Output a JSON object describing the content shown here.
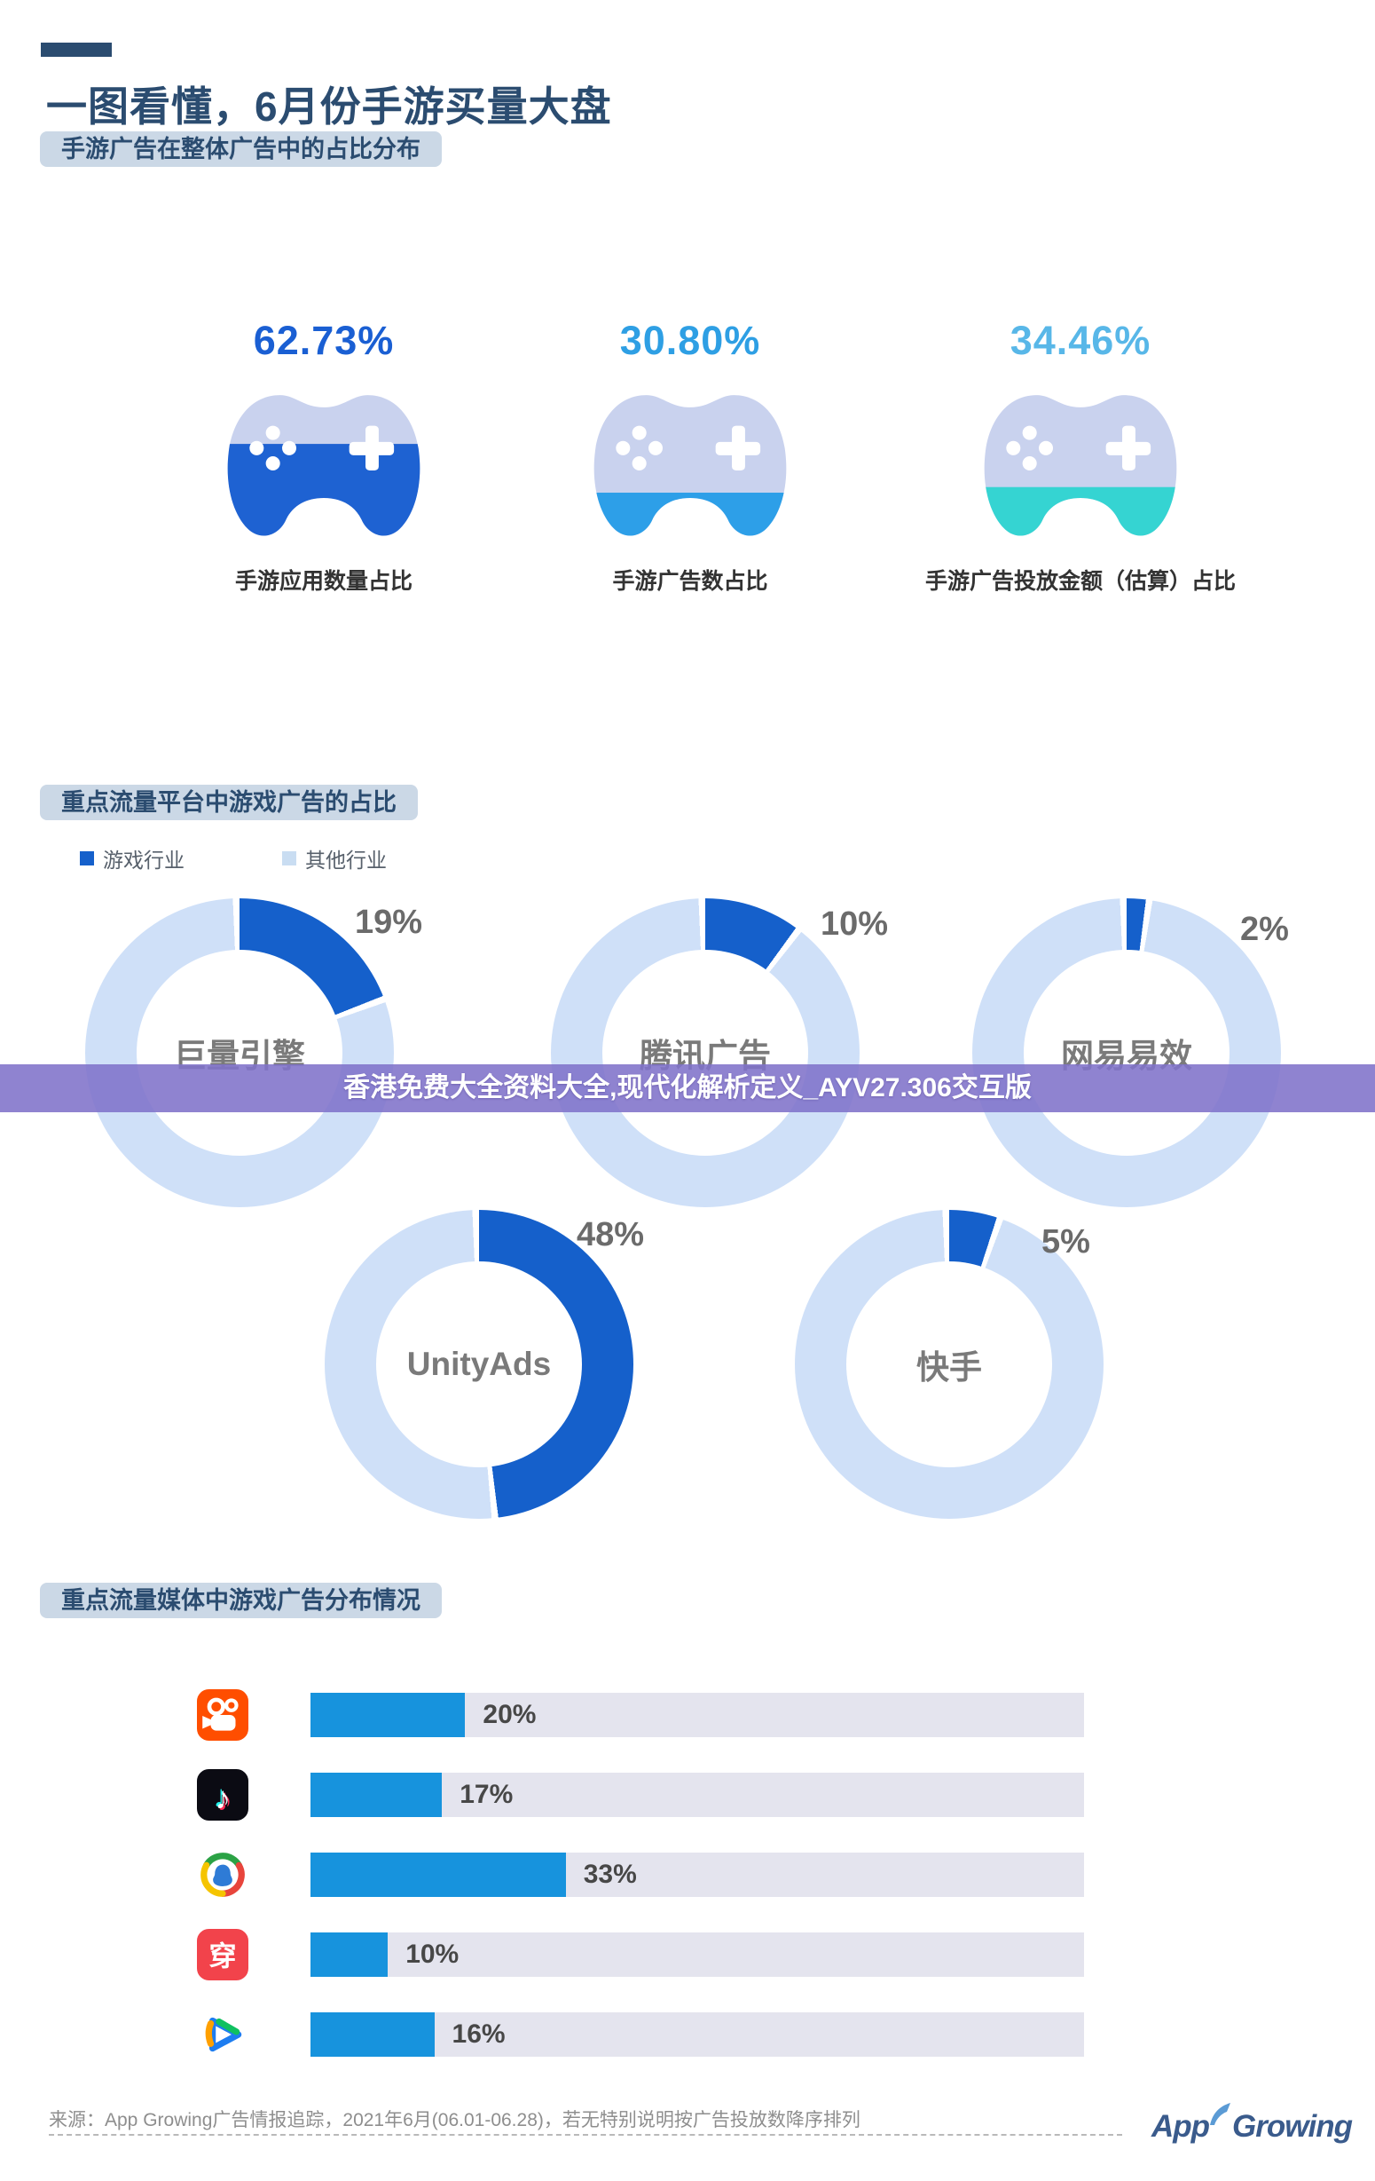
{
  "page_title": "一图看懂，6月份手游买量大盘",
  "section1": {
    "header": "手游广告在整体广告中的占比分布",
    "stats": [
      {
        "value_label": "62.73%",
        "value": 62.73,
        "label": "手游应用数量占比",
        "value_color": "#1A5FD3",
        "fill_color": "#1E62D2"
      },
      {
        "value_label": "30.80%",
        "value": 30.8,
        "label": "手游广告数占比",
        "value_color": "#2E9FE4",
        "fill_color": "#2D9FE8"
      },
      {
        "value_label": "34.46%",
        "value": 34.46,
        "label": "手游广告投放金额（估算）占比",
        "value_color": "#58B7E8",
        "fill_color": "#35D4D2"
      }
    ]
  },
  "section2": {
    "header": "重点流量平台中游戏广告的占比",
    "legend": [
      {
        "label": "游戏行业",
        "color": "#1560CB"
      },
      {
        "label": "其他行业",
        "color": "#C9DDF2"
      }
    ],
    "donuts": [
      {
        "name": "巨量引擎",
        "percent": 19,
        "percent_label": "19%"
      },
      {
        "name": "腾讯广告",
        "percent": 10,
        "percent_label": "10%"
      },
      {
        "name": "网易易效",
        "percent": 2,
        "percent_label": "2%"
      },
      {
        "name": "UnityAds",
        "percent": 48,
        "percent_label": "48%"
      },
      {
        "name": "快手",
        "percent": 5,
        "percent_label": "5%"
      }
    ]
  },
  "overlay_banner": {
    "text": "香港免费大全资料大全,现代化解析定义_AYV27.306交互版"
  },
  "section3": {
    "header": "重点流量媒体中游戏广告分布情况",
    "bars": [
      {
        "app": "快手",
        "value": 20,
        "label": "20%"
      },
      {
        "app": "抖音",
        "value": 17,
        "label": "17%"
      },
      {
        "app": "腾讯广告",
        "value": 33,
        "label": "33%"
      },
      {
        "app": "穿山甲",
        "value": 10,
        "label": "10%",
        "icon_text": "穿"
      },
      {
        "app": "腾讯视频",
        "value": 16,
        "label": "16%"
      }
    ]
  },
  "footer": {
    "source": "来源：App Growing广告情报追踪，2021年6月(06.01-06.28)，若无特别说明按广告投放数降序排列",
    "logo_app": "App",
    "logo_growing": "Growing"
  },
  "chart_data": [
    {
      "type": "bar",
      "title": "手游广告在整体广告中的占比分布",
      "categories": [
        "手游应用数量占比",
        "手游广告数占比",
        "手游广告投放金额（估算）占比"
      ],
      "values": [
        62.73,
        30.8,
        34.46
      ],
      "unit": "%",
      "note": "以游戏手柄图标填充高度表示占比"
    },
    {
      "type": "pie",
      "title": "重点流量平台中游戏广告的占比",
      "legend": [
        "游戏行业",
        "其他行业"
      ],
      "categories": [
        "巨量引擎",
        "腾讯广告",
        "网易易效",
        "UnityAds",
        "快手"
      ],
      "values": [
        19,
        10,
        2,
        48,
        5
      ],
      "unit": "%",
      "note": "每个平台一个环形图：蓝色=游戏行业占比，浅蓝=其他行业"
    },
    {
      "type": "bar",
      "title": "重点流量媒体中游戏广告分布情况",
      "categories": [
        "快手",
        "抖音",
        "腾讯广告",
        "穿山甲",
        "腾讯视频"
      ],
      "values": [
        20,
        17,
        33,
        10,
        16
      ],
      "unit": "%",
      "xlim": [
        0,
        100
      ]
    }
  ]
}
